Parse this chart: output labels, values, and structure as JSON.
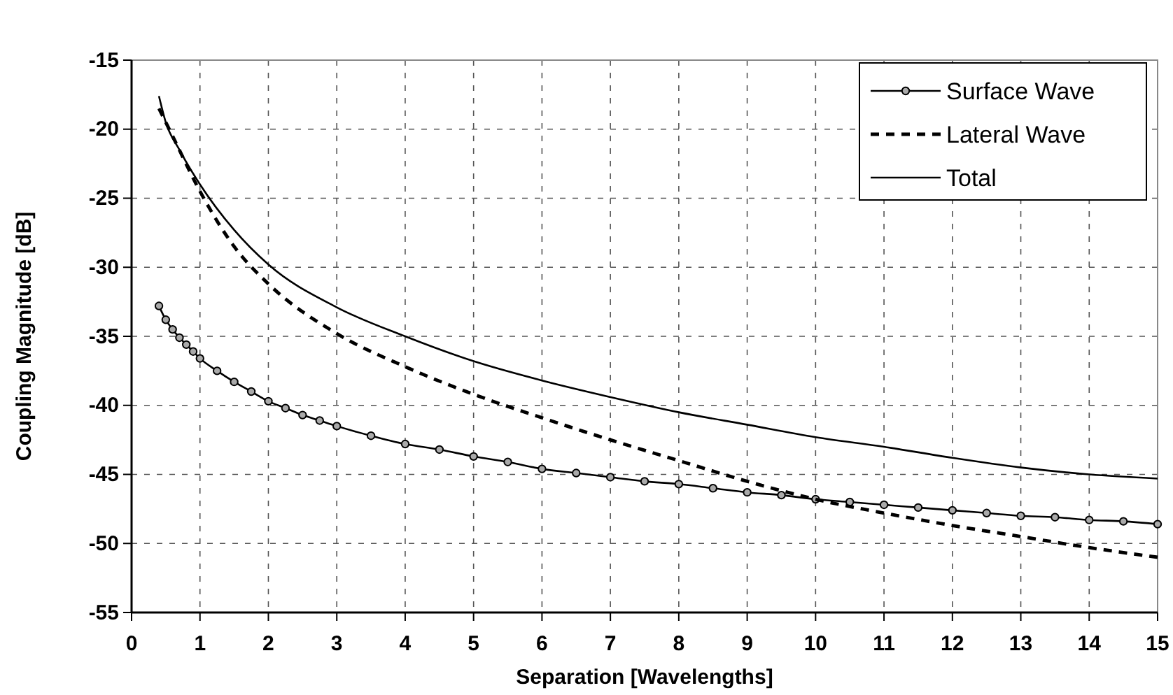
{
  "chart_data": {
    "type": "line",
    "xlabel": "Separation [Wavelengths]",
    "ylabel": "Coupling Magnitude [dB]",
    "xlim": [
      0,
      15
    ],
    "xticks": [
      0,
      1,
      2,
      3,
      4,
      5,
      6,
      7,
      8,
      9,
      10,
      11,
      12,
      13,
      14,
      15
    ],
    "ylim": [
      -55,
      -15
    ],
    "yticks": [
      -55,
      -50,
      -45,
      -40,
      -35,
      -30,
      -25,
      -20,
      -15
    ],
    "grid": true,
    "legend": "top right",
    "series": [
      {
        "name": "Surface Wave",
        "color": "#000000",
        "marker": "circle",
        "line_style": "solid",
        "x": [
          0.4,
          0.5,
          0.6,
          0.7,
          0.8,
          0.9,
          1,
          1.25,
          1.5,
          1.75,
          2,
          2.25,
          2.5,
          2.75,
          3,
          3.5,
          4,
          4.5,
          5,
          5.5,
          6,
          6.5,
          7,
          7.5,
          8,
          8.5,
          9,
          9.5,
          10,
          10.5,
          11,
          11.5,
          12,
          12.5,
          13,
          13.5,
          14,
          14.5,
          15
        ],
        "values": [
          -32.8,
          -33.8,
          -34.5,
          -35.1,
          -35.6,
          -36.1,
          -36.6,
          -37.5,
          -38.3,
          -39.0,
          -39.7,
          -40.2,
          -40.7,
          -41.1,
          -41.5,
          -42.2,
          -42.8,
          -43.2,
          -43.7,
          -44.1,
          -44.6,
          -44.9,
          -45.2,
          -45.5,
          -45.7,
          -46.0,
          -46.3,
          -46.5,
          -46.8,
          -47.0,
          -47.2,
          -47.4,
          -47.6,
          -47.8,
          -48.0,
          -48.1,
          -48.3,
          -48.4,
          -48.6
        ]
      },
      {
        "name": "Lateral Wave",
        "color": "#000000",
        "marker": "none",
        "line_style": "dashed",
        "x": [
          0.4,
          0.6,
          1,
          1.5,
          2,
          3,
          4,
          5,
          6,
          7,
          8,
          9,
          10,
          11,
          12,
          13,
          14,
          15
        ],
        "values": [
          -18.5,
          -20.5,
          -24.5,
          -28.5,
          -31.2,
          -34.8,
          -37.2,
          -39.2,
          -40.9,
          -42.5,
          -44.0,
          -45.5,
          -46.8,
          -47.8,
          -48.7,
          -49.5,
          -50.3,
          -51.0
        ]
      },
      {
        "name": "Total",
        "color": "#000000",
        "marker": "none",
        "line_style": "solid",
        "x": [
          0.4,
          0.5,
          0.7,
          1,
          1.5,
          2,
          3,
          4,
          5,
          6,
          7,
          8,
          9,
          10,
          11,
          12,
          13,
          14,
          15
        ],
        "values": [
          -17.6,
          -19.5,
          -21.5,
          -24.0,
          -27.3,
          -29.8,
          -32.9,
          -35.0,
          -36.8,
          -38.2,
          -39.4,
          -40.5,
          -41.4,
          -42.3,
          -43.0,
          -43.8,
          -44.5,
          -45.0,
          -45.3
        ]
      }
    ]
  }
}
